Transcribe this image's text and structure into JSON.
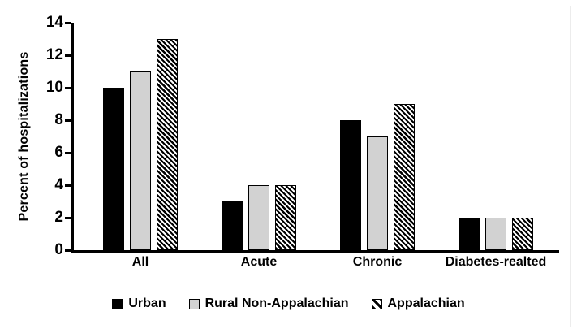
{
  "chart_data": {
    "type": "bar",
    "title": "",
    "xlabel": "",
    "ylabel": "Percent of hospitalizations",
    "categories": [
      "All",
      "Acute",
      "Chronic",
      "Diabetes-realted"
    ],
    "series": [
      {
        "name": "Urban",
        "style": "solid-black",
        "values": [
          10,
          3,
          8,
          2
        ]
      },
      {
        "name": "Rural Non-Appalachian",
        "style": "solid-gray",
        "values": [
          11,
          4,
          7,
          2
        ]
      },
      {
        "name": "Appalachian",
        "style": "diagonal-hatch",
        "values": [
          13,
          4,
          9,
          2
        ]
      }
    ],
    "ylim": [
      0,
      14
    ],
    "yticks": [
      0,
      2,
      4,
      6,
      8,
      10,
      12,
      14
    ],
    "grid": false,
    "legend_position": "bottom"
  },
  "colors": {
    "background": "#ffffff",
    "text": "#000000",
    "axis": "#000000",
    "bar_black": "#000000",
    "bar_gray": "#d2d2d2",
    "bar_border": "#000000",
    "hatch_stripe": "#000000",
    "card_border": "#ececec"
  }
}
